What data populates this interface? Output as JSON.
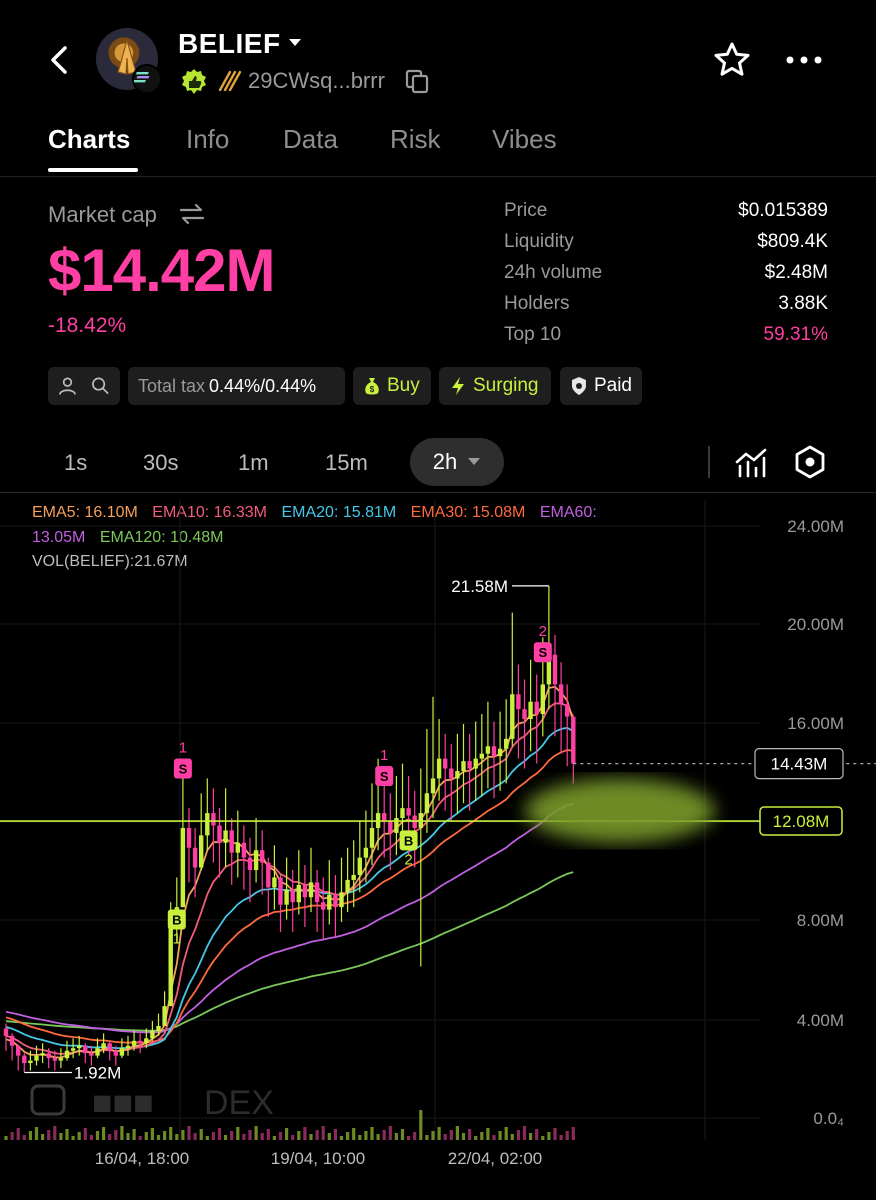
{
  "header": {
    "title": "BELIEF",
    "address": "29CWsq...brrr"
  },
  "tabs": [
    "Charts",
    "Info",
    "Data",
    "Risk",
    "Vibes"
  ],
  "market": {
    "label": "Market cap",
    "value": "$14.42M",
    "change": "-18.42%"
  },
  "stats": [
    {
      "label": "Price",
      "value": "$0.015389"
    },
    {
      "label": "Liquidity",
      "value": "$809.4K"
    },
    {
      "label": "24h volume",
      "value": "$2.48M"
    },
    {
      "label": "Holders",
      "value": "3.88K"
    },
    {
      "label": "Top 10",
      "value": "59.31%"
    }
  ],
  "chips": {
    "tax_label": "Total tax",
    "tax_value": "0.44%/0.44%",
    "buy": "Buy",
    "surging": "Surging",
    "paid": "Paid"
  },
  "timeframes": [
    "1s",
    "30s",
    "1m",
    "15m",
    "2h"
  ],
  "selected_timeframe": "2h",
  "indicators": {
    "ema5": "EMA5: 16.10M",
    "ema10": "EMA10: 16.33M",
    "ema20": "EMA20: 15.81M",
    "ema30": "EMA30: 15.08M",
    "ema60_label": "EMA60:",
    "ema60_value": "13.05M",
    "ema120": "EMA120: 10.48M",
    "vol": "VOL(BELIEF):21.67M"
  },
  "colors": {
    "brand_pink": "#ff3fa3",
    "lime": "#c8f03c",
    "ema5": "#f5a05a",
    "ema10": "#f25c7a",
    "ema20": "#45c8e8",
    "ema30": "#ff6a3d",
    "ema60": "#c060e0",
    "ema120": "#7cc95a"
  },
  "chart_data": {
    "type": "candlestick",
    "y_ticks": [
      "24.00M",
      "20.00M",
      "16.00M",
      "8.00M",
      "4.00M",
      "0.0₄"
    ],
    "ylim": [
      0,
      25
    ],
    "x_ticks": [
      "16/04, 18:00",
      "19/04, 10:00",
      "22/04, 02:00"
    ],
    "high_label": "21.58M",
    "low_label": "1.92M",
    "current_price_label": "14.43M",
    "line_label": "12.08M",
    "watermark": "DEX",
    "markers": [
      {
        "letter": "S",
        "count": "1",
        "x_index": 29,
        "value": 14.2
      },
      {
        "letter": "B",
        "count": "1",
        "x_index": 28,
        "value": 8.1
      },
      {
        "letter": "S",
        "count": "1",
        "x_index": 62,
        "value": 13.9
      },
      {
        "letter": "B",
        "count": "2",
        "x_index": 66,
        "value": 11.3
      },
      {
        "letter": "S",
        "count": "2",
        "x_index": 88,
        "value": 18.9
      }
    ],
    "series_close": [
      3.4,
      3.0,
      2.6,
      2.3,
      2.4,
      2.6,
      2.7,
      2.5,
      2.4,
      2.5,
      2.8,
      2.9,
      3.0,
      2.7,
      2.6,
      2.9,
      3.1,
      2.8,
      2.6,
      2.9,
      3.0,
      3.2,
      3.1,
      3.3,
      3.6,
      3.8,
      4.6,
      7.8,
      8.6,
      11.8,
      11.0,
      10.2,
      11.5,
      12.4,
      11.9,
      11.2,
      11.7,
      10.8,
      11.2,
      10.6,
      10.1,
      10.9,
      10.4,
      9.4,
      9.8,
      8.7,
      9.3,
      8.8,
      9.5,
      9.0,
      9.6,
      8.8,
      8.5,
      9.1,
      8.6,
      9.2,
      9.7,
      9.9,
      10.6,
      11.0,
      11.8,
      12.4,
      12.1,
      11.6,
      12.2,
      12.6,
      12.3,
      11.8,
      12.4,
      13.2,
      13.8,
      14.6,
      14.2,
      13.8,
      14.1,
      14.5,
      14.2,
      14.6,
      14.8,
      15.1,
      14.7,
      15.0,
      15.4,
      17.2,
      16.6,
      16.2,
      16.9,
      16.4,
      17.6,
      18.8,
      17.6,
      16.8,
      16.3,
      14.4
    ],
    "series_high": [
      3.9,
      3.5,
      3.0,
      2.7,
      2.8,
      3.0,
      3.1,
      2.9,
      2.8,
      2.9,
      3.2,
      3.3,
      3.4,
      3.1,
      3.0,
      3.3,
      3.5,
      3.2,
      3.0,
      3.3,
      3.4,
      3.6,
      3.5,
      3.7,
      4.0,
      4.3,
      5.2,
      8.8,
      9.8,
      14.6,
      12.6,
      11.8,
      13.2,
      13.8,
      13.4,
      12.6,
      13.4,
      12.2,
      12.5,
      11.9,
      11.4,
      12.2,
      11.7,
      10.6,
      11.1,
      9.9,
      10.6,
      10.1,
      10.9,
      10.3,
      11.0,
      10.1,
      9.8,
      10.5,
      9.9,
      10.6,
      11.0,
      11.3,
      12.1,
      12.5,
      13.6,
      14.6,
      13.8,
      13.2,
      13.9,
      14.4,
      13.9,
      13.3,
      14.2,
      15.8,
      17.1,
      16.2,
      15.6,
      15.2,
      15.6,
      16.0,
      15.6,
      16.1,
      16.4,
      16.9,
      16.1,
      16.5,
      17.0,
      20.5,
      18.4,
      17.8,
      18.6,
      18.0,
      19.5,
      21.58,
      19.6,
      18.5,
      17.6,
      15.4
    ],
    "series_low": [
      2.8,
      2.4,
      2.0,
      1.92,
      2.0,
      2.2,
      2.3,
      2.1,
      2.0,
      2.1,
      2.4,
      2.5,
      2.6,
      2.3,
      2.2,
      2.5,
      2.7,
      2.4,
      2.2,
      2.5,
      2.6,
      2.8,
      2.7,
      2.9,
      3.2,
      3.4,
      4.0,
      6.8,
      7.2,
      10.2,
      9.6,
      9.0,
      10.1,
      10.9,
      10.4,
      9.8,
      10.2,
      9.5,
      9.8,
      9.3,
      8.8,
      9.6,
      9.1,
      8.2,
      8.5,
      7.6,
      8.1,
      7.6,
      8.3,
      7.8,
      8.4,
      7.6,
      7.3,
      7.9,
      7.4,
      8.0,
      8.4,
      8.6,
      9.2,
      9.6,
      10.3,
      10.9,
      10.6,
      10.1,
      10.7,
      11.0,
      10.7,
      10.2,
      6.2,
      11.6,
      12.2,
      12.9,
      12.5,
      12.1,
      12.4,
      12.8,
      12.5,
      12.9,
      13.1,
      13.4,
      13.0,
      13.3,
      13.6,
      15.1,
      14.6,
      14.2,
      14.9,
      14.4,
      15.5,
      16.6,
      15.5,
      14.8,
      14.3,
      13.6
    ]
  }
}
